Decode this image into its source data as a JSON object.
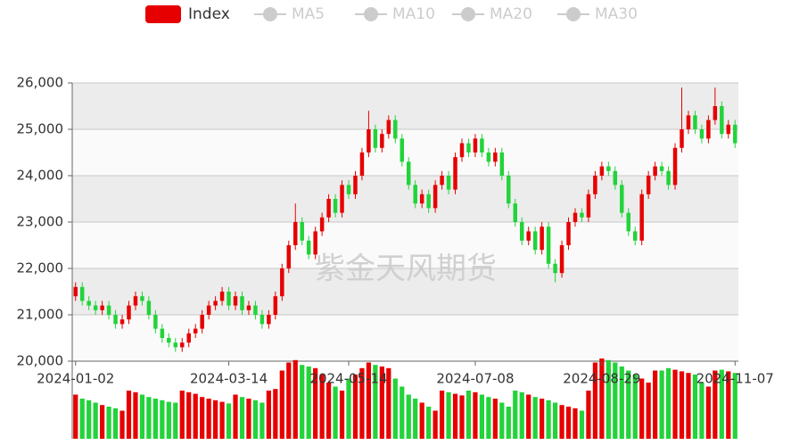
{
  "chart_data": {
    "type": "candlestick",
    "watermark": "紫金天风期货",
    "legend": [
      {
        "name": "Index",
        "color": "#e60000"
      },
      {
        "name": "MA5",
        "color": "#cccccc"
      },
      {
        "name": "MA10",
        "color": "#cccccc"
      },
      {
        "name": "MA20",
        "color": "#cccccc"
      },
      {
        "name": "MA30",
        "color": "#cccccc"
      }
    ],
    "up_color": "#e60000",
    "down_color": "#22d33a",
    "grid": true,
    "ylim": [
      20000,
      26000
    ],
    "yticks": [
      {
        "value": 20000,
        "label": "20,000"
      },
      {
        "value": 21000,
        "label": "21,000"
      },
      {
        "value": 22000,
        "label": "22,000"
      },
      {
        "value": 23000,
        "label": "23,000"
      },
      {
        "value": 24000,
        "label": "24,000"
      },
      {
        "value": 25000,
        "label": "25,000"
      },
      {
        "value": 26000,
        "label": "26,000"
      }
    ],
    "categories": [
      "2024-01-02",
      null,
      null,
      null,
      null,
      null,
      null,
      null,
      null,
      null,
      null,
      null,
      null,
      null,
      null,
      null,
      null,
      null,
      null,
      null,
      null,
      null,
      null,
      "2024-03-14",
      null,
      null,
      null,
      null,
      null,
      null,
      null,
      null,
      null,
      null,
      null,
      null,
      null,
      null,
      null,
      null,
      null,
      "2024-05-14",
      null,
      null,
      null,
      null,
      null,
      null,
      null,
      null,
      null,
      null,
      null,
      null,
      null,
      null,
      null,
      null,
      null,
      null,
      "2024-07-08",
      null,
      null,
      null,
      null,
      null,
      null,
      null,
      null,
      null,
      null,
      null,
      null,
      null,
      null,
      null,
      null,
      null,
      null,
      "2024-08-29",
      null,
      null,
      null,
      null,
      null,
      null,
      null,
      null,
      null,
      null,
      null,
      null,
      null,
      null,
      null,
      null,
      null,
      null,
      null,
      "2024-11-07"
    ],
    "open": [
      21400,
      21600,
      21300,
      21200,
      21100,
      21200,
      21000,
      20800,
      20900,
      21200,
      21400,
      21300,
      21000,
      20700,
      20500,
      20400,
      20300,
      20400,
      20600,
      20700,
      21000,
      21200,
      21300,
      21500,
      21200,
      21400,
      21100,
      21200,
      21000,
      20800,
      21000,
      21400,
      22000,
      22500,
      23000,
      22600,
      22300,
      22800,
      23100,
      23500,
      23200,
      23800,
      23600,
      24000,
      24500,
      25000,
      24600,
      24900,
      25200,
      24800,
      24300,
      23800,
      23400,
      23600,
      23300,
      23800,
      24000,
      23700,
      24400,
      24700,
      24500,
      24800,
      24500,
      24300,
      24500,
      24000,
      23400,
      23000,
      22600,
      22800,
      22400,
      22900,
      22100,
      21900,
      22500,
      23000,
      23200,
      23100,
      23600,
      24000,
      24200,
      24100,
      23800,
      23200,
      22800,
      22600,
      23600,
      24000,
      24200,
      24100,
      23800,
      24600,
      25000,
      25300,
      25000,
      24800,
      25200,
      25500,
      24900,
      25100
    ],
    "close": [
      21600,
      21300,
      21200,
      21100,
      21200,
      21000,
      20800,
      20900,
      21200,
      21400,
      21300,
      21000,
      20700,
      20500,
      20400,
      20300,
      20400,
      20600,
      20700,
      21000,
      21200,
      21300,
      21500,
      21200,
      21400,
      21100,
      21200,
      21000,
      20800,
      21000,
      21400,
      22000,
      22500,
      23000,
      22600,
      22300,
      22800,
      23100,
      23500,
      23200,
      23800,
      23600,
      24000,
      24500,
      25000,
      24600,
      24900,
      25200,
      24800,
      24300,
      23800,
      23400,
      23600,
      23300,
      23800,
      24000,
      23700,
      24400,
      24700,
      24500,
      24800,
      24500,
      24300,
      24500,
      24000,
      23400,
      23000,
      22600,
      22800,
      22400,
      22900,
      22100,
      21900,
      22500,
      23000,
      23200,
      23100,
      23600,
      24000,
      24200,
      24100,
      23800,
      23200,
      22800,
      22600,
      23600,
      24000,
      24200,
      24100,
      23800,
      24600,
      25000,
      25300,
      25000,
      24800,
      25200,
      25500,
      24900,
      25100,
      24700
    ],
    "low": [
      21300,
      21200,
      21100,
      21000,
      21000,
      20900,
      20700,
      20700,
      20800,
      21100,
      21200,
      20900,
      20600,
      20400,
      20300,
      20200,
      20200,
      20300,
      20500,
      20600,
      20900,
      21100,
      21200,
      21100,
      21100,
      21000,
      21000,
      20900,
      20700,
      20700,
      20900,
      21300,
      21900,
      22400,
      22500,
      22200,
      22200,
      22700,
      23000,
      23100,
      23100,
      23500,
      23500,
      23900,
      24400,
      24500,
      24500,
      24800,
      24700,
      24200,
      23700,
      23300,
      23300,
      23200,
      23200,
      23700,
      23600,
      23600,
      24300,
      24400,
      24400,
      24400,
      24200,
      24200,
      23900,
      23300,
      22900,
      22500,
      22500,
      22300,
      22300,
      22000,
      21700,
      21800,
      22400,
      22900,
      23000,
      23000,
      23500,
      23900,
      24000,
      23700,
      23100,
      22700,
      22500,
      22500,
      23500,
      23900,
      24000,
      23700,
      23700,
      24500,
      24900,
      24900,
      24700,
      24700,
      25100,
      24800,
      24800,
      24600
    ],
    "high": [
      21700,
      21700,
      21400,
      21300,
      21300,
      21300,
      21100,
      21000,
      21300,
      21500,
      21500,
      21400,
      21100,
      20800,
      20600,
      20500,
      20500,
      20700,
      20800,
      21100,
      21300,
      21400,
      21600,
      21600,
      21500,
      21500,
      21300,
      21300,
      21100,
      21100,
      21500,
      22100,
      22600,
      23400,
      23100,
      22700,
      22900,
      23200,
      23600,
      23600,
      23900,
      23900,
      24100,
      24600,
      25400,
      25100,
      25000,
      25300,
      25300,
      24900,
      24400,
      23900,
      23700,
      23700,
      23900,
      24100,
      24100,
      24500,
      24800,
      24800,
      24900,
      24900,
      24600,
      24600,
      24600,
      24100,
      23500,
      23100,
      22900,
      22900,
      23000,
      23000,
      22200,
      22600,
      23100,
      23300,
      23300,
      23700,
      24100,
      24300,
      24300,
      24200,
      23900,
      23300,
      22900,
      23700,
      24100,
      24300,
      24300,
      24200,
      24700,
      25900,
      25400,
      25400,
      25100,
      25300,
      25900,
      25600,
      25200,
      25200
    ],
    "volume": [
      55,
      50,
      48,
      45,
      42,
      40,
      38,
      35,
      60,
      58,
      55,
      52,
      50,
      48,
      46,
      45,
      60,
      58,
      56,
      52,
      50,
      48,
      46,
      44,
      55,
      52,
      50,
      48,
      45,
      60,
      62,
      85,
      95,
      98,
      92,
      90,
      88,
      80,
      70,
      65,
      60,
      75,
      80,
      88,
      95,
      92,
      90,
      88,
      75,
      65,
      55,
      50,
      45,
      40,
      35,
      60,
      58,
      56,
      54,
      60,
      58,
      55,
      52,
      50,
      45,
      40,
      60,
      58,
      55,
      52,
      50,
      48,
      45,
      42,
      40,
      38,
      35,
      60,
      95,
      100,
      98,
      95,
      90,
      85,
      80,
      75,
      70,
      85,
      85,
      88,
      86,
      84,
      82,
      80,
      70,
      65,
      85,
      86,
      84,
      82
    ]
  }
}
